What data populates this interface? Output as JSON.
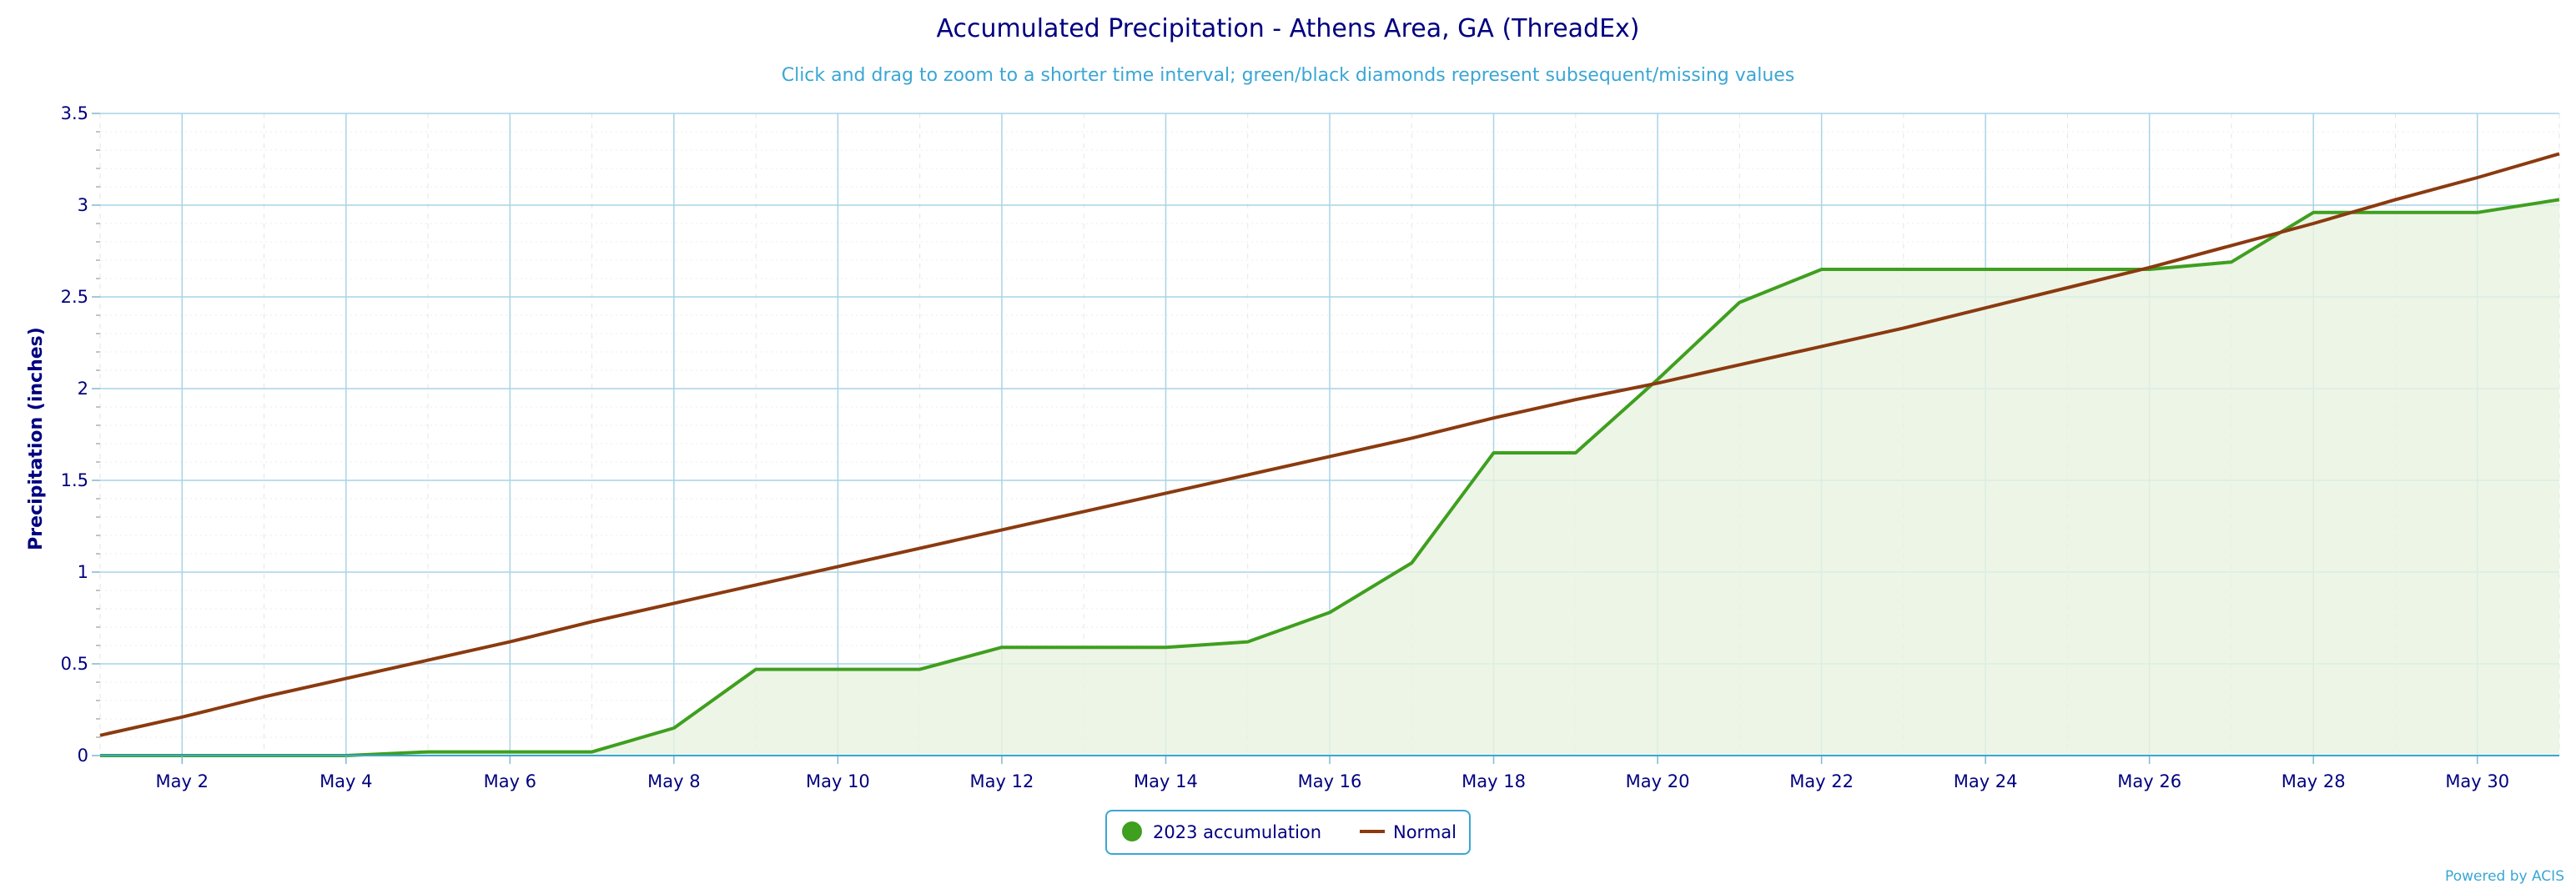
{
  "chart_data": {
    "type": "line",
    "title": "Accumulated Precipitation - Athens Area, GA (ThreadEx)",
    "subtitle": "Click and drag to zoom to a shorter time interval; green/black diamonds represent subsequent/missing values",
    "ylabel": "Precipitation (inches)",
    "xlabel": "",
    "ylim": [
      0,
      3.5
    ],
    "xlim": [
      1,
      31
    ],
    "y_ticks": [
      "0",
      "0.5",
      "1",
      "1.5",
      "2",
      "2.5",
      "3",
      "3.5"
    ],
    "x_ticks": [
      {
        "day": 2,
        "label": "May 2"
      },
      {
        "day": 4,
        "label": "May 4"
      },
      {
        "day": 6,
        "label": "May 6"
      },
      {
        "day": 8,
        "label": "May 8"
      },
      {
        "day": 10,
        "label": "May 10"
      },
      {
        "day": 12,
        "label": "May 12"
      },
      {
        "day": 14,
        "label": "May 14"
      },
      {
        "day": 16,
        "label": "May 16"
      },
      {
        "day": 18,
        "label": "May 18"
      },
      {
        "day": 20,
        "label": "May 20"
      },
      {
        "day": 22,
        "label": "May 22"
      },
      {
        "day": 24,
        "label": "May 24"
      },
      {
        "day": 26,
        "label": "May 26"
      },
      {
        "day": 28,
        "label": "May 28"
      },
      {
        "day": 30,
        "label": "May 30"
      }
    ],
    "grid": true,
    "legend_position": "bottom-center",
    "series": [
      {
        "name": "2023 accumulation",
        "color": "#3f9f1f",
        "fill": "#e8f3e1",
        "x": [
          1,
          2,
          3,
          4,
          5,
          6,
          7,
          8,
          9,
          10,
          11,
          12,
          13,
          14,
          15,
          16,
          17,
          18,
          19,
          20,
          21,
          22,
          23,
          24,
          25,
          26,
          27,
          28,
          29,
          30,
          31
        ],
        "values": [
          0,
          0,
          0,
          0,
          0.02,
          0.02,
          0.02,
          0.15,
          0.47,
          0.47,
          0.47,
          0.59,
          0.59,
          0.59,
          0.62,
          0.78,
          1.05,
          1.65,
          1.65,
          2.05,
          2.47,
          2.65,
          2.65,
          2.65,
          2.65,
          2.65,
          2.69,
          2.96,
          2.96,
          2.96,
          3.03
        ]
      },
      {
        "name": "Normal",
        "color": "#8b3a0f",
        "x": [
          1,
          2,
          3,
          4,
          5,
          6,
          7,
          8,
          9,
          10,
          11,
          12,
          13,
          14,
          15,
          16,
          17,
          18,
          19,
          20,
          21,
          22,
          23,
          24,
          25,
          26,
          27,
          28,
          29,
          30,
          31
        ],
        "values": [
          0.11,
          0.21,
          0.32,
          0.42,
          0.52,
          0.62,
          0.73,
          0.83,
          0.93,
          1.03,
          1.13,
          1.23,
          1.33,
          1.43,
          1.53,
          1.63,
          1.73,
          1.84,
          1.94,
          2.03,
          2.13,
          2.23,
          2.33,
          2.44,
          2.55,
          2.66,
          2.78,
          2.9,
          3.03,
          3.15,
          3.28
        ]
      }
    ]
  },
  "credit": "Powered by ACIS"
}
